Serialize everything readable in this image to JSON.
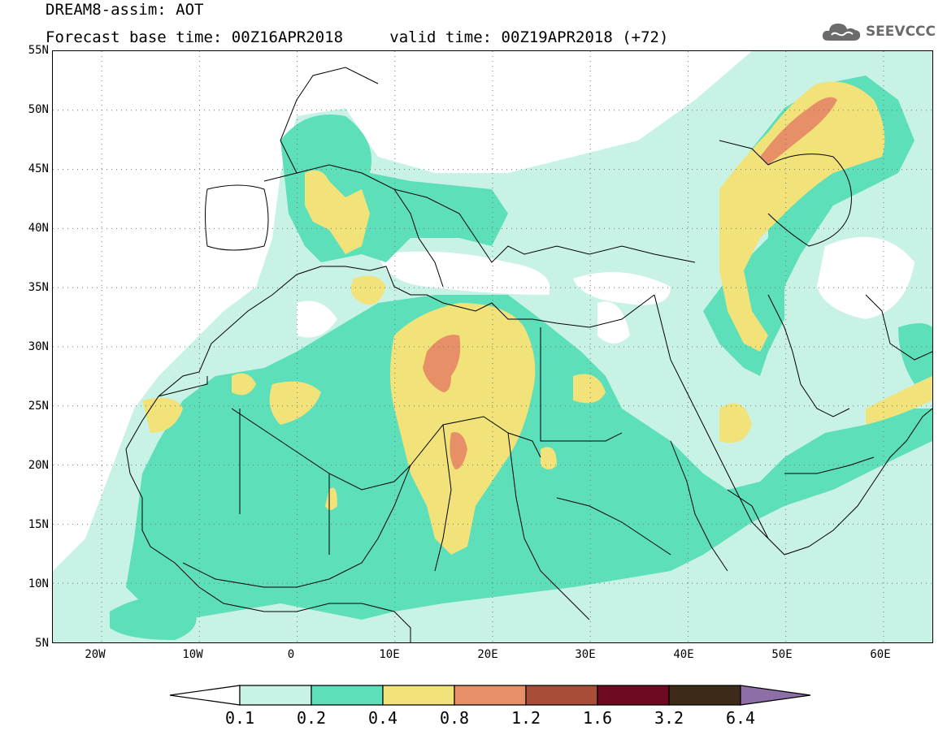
{
  "header": {
    "title": "DREAM8-assim: AOT",
    "base_time_label": "Forecast base time: 00Z16APR2018",
    "valid_time_label": "valid time: 00Z19APR2018 (+72)",
    "logo_text": "SEEVCCC",
    "logo_icon": "cloud-icon"
  },
  "map": {
    "lon_range": [
      -25,
      65
    ],
    "lat_range": [
      5,
      55
    ],
    "lat_ticks": [
      "55N",
      "50N",
      "45N",
      "40N",
      "35N",
      "30N",
      "25N",
      "20N",
      "15N",
      "10N",
      "5N"
    ],
    "lon_ticks": [
      "20W",
      "10W",
      "0",
      "10E",
      "20E",
      "30E",
      "40E",
      "50E",
      "60E"
    ],
    "grid": "dotted",
    "ocean_color": "#ffffff",
    "border_color": "#000000"
  },
  "legend": {
    "colors": [
      {
        "range": "<0.1",
        "hex": "#ffffff"
      },
      {
        "range": "0.1-0.2",
        "hex": "#c9f2e6"
      },
      {
        "range": "0.2-0.4",
        "hex": "#5ddfb9"
      },
      {
        "range": "0.4-0.8",
        "hex": "#f2e27a"
      },
      {
        "range": "0.8-1.2",
        "hex": "#e78f66"
      },
      {
        "range": "1.2-1.6",
        "hex": "#a84d38"
      },
      {
        "range": "1.6-3.2",
        "hex": "#6e0a22"
      },
      {
        "range": "3.2-6.4",
        "hex": "#3e2a18"
      },
      {
        "range": ">6.4",
        "hex": "#8e6ea6"
      }
    ],
    "labels": [
      "0.1",
      "0.2",
      "0.4",
      "0.8",
      "1.2",
      "1.6",
      "3.2",
      "6.4"
    ]
  }
}
